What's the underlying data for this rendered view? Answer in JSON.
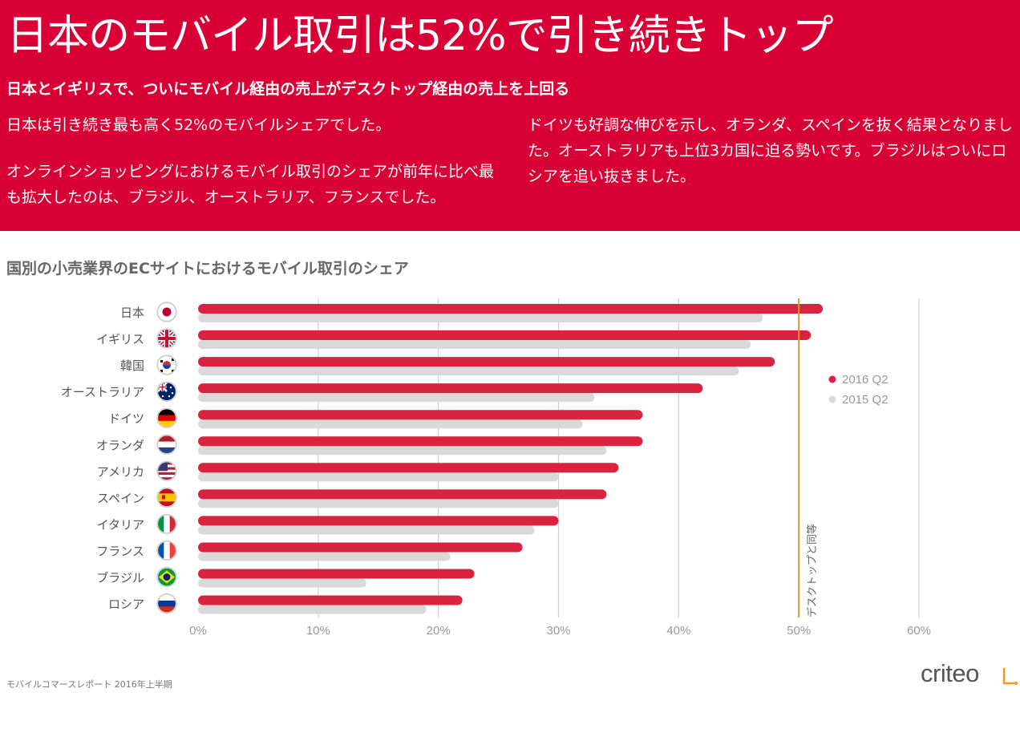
{
  "header": {
    "headline": "日本のモバイル取引は52%で引き続きトップ",
    "subhead": "日本とイギリスで、ついにモバイル経由の売上がデスクトップ経由の売上を上回る",
    "para1": "日本は引き続き最も高く52%のモバイルシェアでした。",
    "para2": "オンラインショッピングにおけるモバイル取引のシェアが前年に比べ最も拡大したのは、ブラジル、オーストラリア、フランスでした。",
    "para3": "ドイツも好調な伸びを示し、オランダ、スペインを抜く結果となりました。オーストラリアも上位3カ国に迫る勢いです。ブラジルはついにロシアを追い抜きました。"
  },
  "chart_title": "国別の小売業界のECサイトにおけるモバイル取引のシェア",
  "chart_data": {
    "type": "bar",
    "orientation": "horizontal",
    "categories": [
      "日本",
      "イギリス",
      "韓国",
      "オーストラリア",
      "ドイツ",
      "オランダ",
      "アメリカ",
      "スペイン",
      "イタリア",
      "フランス",
      "ブラジル",
      "ロシア"
    ],
    "series": [
      {
        "name": "2016 Q2",
        "values": [
          52,
          51,
          48,
          42,
          37,
          37,
          35,
          34,
          30,
          27,
          23,
          22
        ]
      },
      {
        "name": "2015 Q2",
        "values": [
          47,
          46,
          45,
          33,
          32,
          34,
          30,
          30,
          28,
          21,
          14,
          19
        ]
      }
    ],
    "xlim": [
      0,
      60
    ],
    "xticks": [
      "0%",
      "10%",
      "20%",
      "30%",
      "40%",
      "50%",
      "60%"
    ],
    "grid": true,
    "legend": "right",
    "reference_line": {
      "value": 50,
      "label": "デスクトップと同等"
    },
    "colors": {
      "series_2016": "#d9233f",
      "series_2015": "#d9d9d9",
      "reference": "#d99a2b",
      "grid": "#d0d0d0"
    }
  },
  "flags": [
    "japan-flag-icon",
    "uk-flag-icon",
    "korea-flag-icon",
    "australia-flag-icon",
    "germany-flag-icon",
    "netherlands-flag-icon",
    "usa-flag-icon",
    "spain-flag-icon",
    "italy-flag-icon",
    "france-flag-icon",
    "brazil-flag-icon",
    "russia-flag-icon"
  ],
  "footer": {
    "source": "モバイルコマースレポート 2016年上半期",
    "logo": "criteo"
  },
  "colors": {
    "brand_red": "#d90035"
  }
}
